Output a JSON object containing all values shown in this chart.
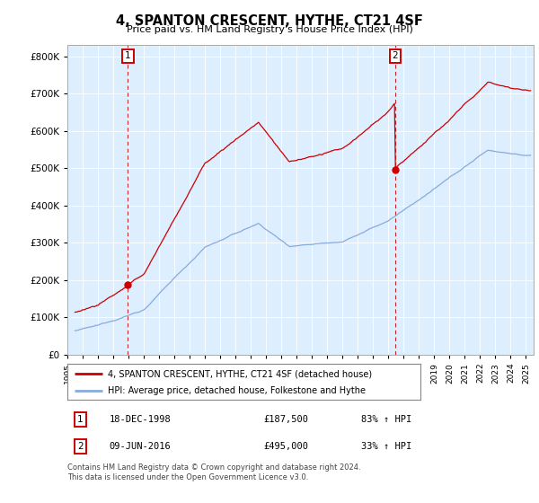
{
  "title": "4, SPANTON CRESCENT, HYTHE, CT21 4SF",
  "subtitle": "Price paid vs. HM Land Registry's House Price Index (HPI)",
  "legend_line1": "4, SPANTON CRESCENT, HYTHE, CT21 4SF (detached house)",
  "legend_line2": "HPI: Average price, detached house, Folkestone and Hythe",
  "annotation1_label": "1",
  "annotation1_date": "18-DEC-1998",
  "annotation1_price": 187500,
  "annotation2_label": "2",
  "annotation2_date": "09-JUN-2016",
  "annotation2_price": 495000,
  "footer": "Contains HM Land Registry data © Crown copyright and database right 2024.\nThis data is licensed under the Open Government Licence v3.0.",
  "hpi_color": "#88aadd",
  "price_color": "#cc0000",
  "annotation_color": "#cc0000",
  "plot_bg_color": "#ddeeff",
  "background_color": "#ffffff",
  "grid_color": "#ffffff",
  "ylim": [
    0,
    830000
  ],
  "yticks": [
    0,
    100000,
    200000,
    300000,
    400000,
    500000,
    600000,
    700000,
    800000
  ],
  "xlim_start": 1995.5,
  "xlim_end": 2025.5,
  "transaction1_x": 1998.96,
  "transaction2_x": 2016.44
}
